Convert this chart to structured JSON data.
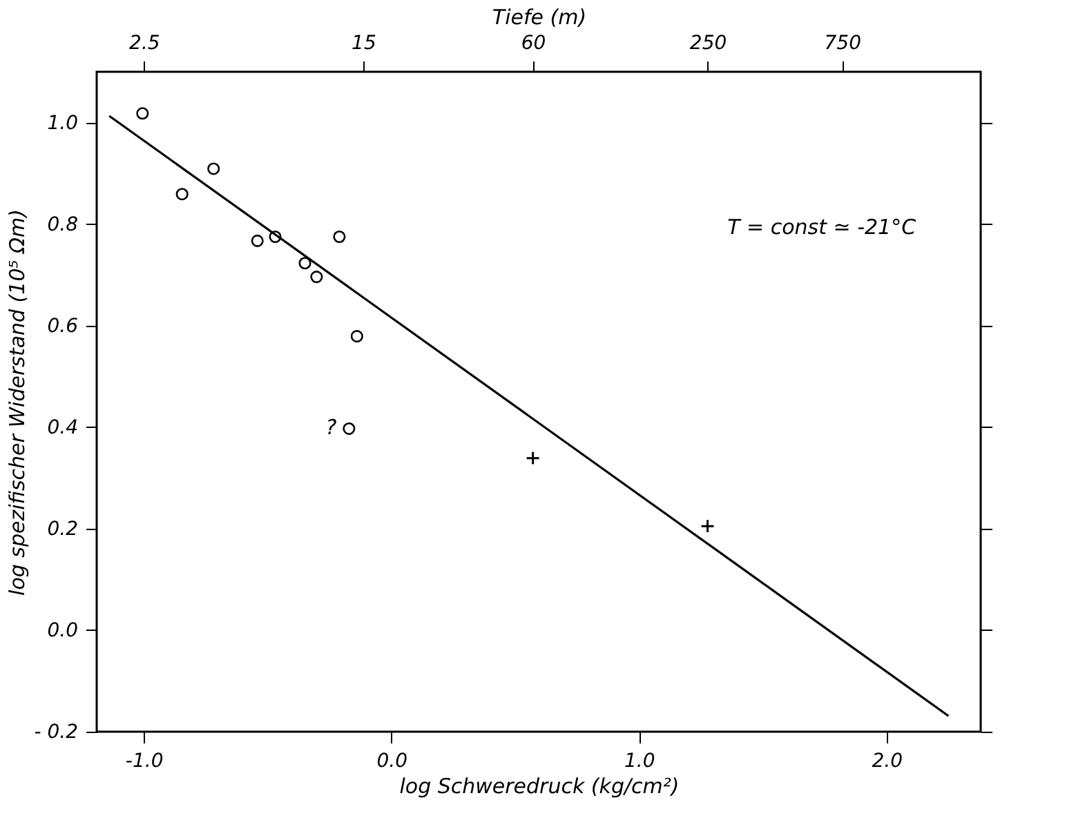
{
  "chart_data": {
    "type": "scatter",
    "xlabel": "log Schweredruck (kg/cm²)",
    "ylabel": "log spezifischer Widerstand (10⁵ Ωm)",
    "x2label": "Tiefe (m)",
    "xlim": [
      -1.19,
      2.38
    ],
    "ylim": [
      -0.2,
      1.1
    ],
    "x2lim": [
      1.7,
      2328
    ],
    "xticks": [
      {
        "value": -1.0,
        "label": "-1.0"
      },
      {
        "value": 0.0,
        "label": "0.0"
      },
      {
        "value": 1.0,
        "label": "1.0"
      },
      {
        "value": 2.0,
        "label": "2.0"
      }
    ],
    "x2ticks": [
      2.5,
      15,
      60,
      250,
      750
    ],
    "yticks": [
      {
        "value": -0.2,
        "label": "- 0.2"
      },
      {
        "value": 0.0,
        "label": "0.0"
      },
      {
        "value": 0.2,
        "label": "0.2"
      },
      {
        "value": 0.4,
        "label": "0.4"
      },
      {
        "value": 0.6,
        "label": "0.6"
      },
      {
        "value": 0.8,
        "label": "0.8"
      },
      {
        "value": 1.0,
        "label": "1.0"
      }
    ],
    "grid": false,
    "log": "x2",
    "series": [
      {
        "marker": "circle",
        "color": "#000000",
        "x": [
          -1.005,
          -0.845,
          -0.718,
          -0.541,
          -0.469,
          -0.349,
          -0.302,
          -0.21,
          -0.139,
          -0.171
        ],
        "values": [
          1.018,
          0.859,
          0.909,
          0.767,
          0.775,
          0.723,
          0.696,
          0.775,
          0.579,
          0.397
        ]
      },
      {
        "marker": "cross",
        "color": "#000000",
        "axis": "x2",
        "x": [
          60,
          250
        ],
        "values": [
          0.339,
          0.205
        ]
      },
      {
        "type": "line",
        "line_style": "solid",
        "color": "#000000",
        "x": [
          -1.139,
          2.25
        ],
        "values": [
          1.013,
          -0.169
        ]
      }
    ],
    "annotations": [
      "T = const ≃ -21°C",
      {
        "text": "?",
        "x": -0.21,
        "y": 0.4
      }
    ]
  }
}
